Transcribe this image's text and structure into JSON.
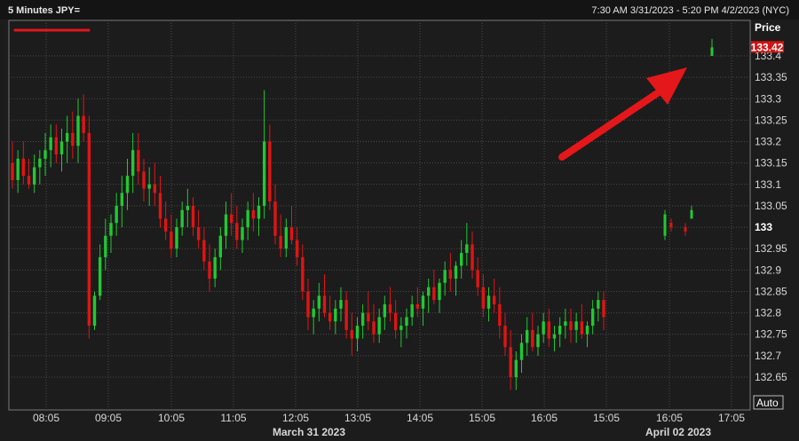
{
  "header": {
    "title": "5 Minutes JPY=",
    "range": "7:30 AM 3/31/2023 - 5:20 PM 4/2/2023 (NYC)"
  },
  "colors": {
    "background": "#1c1c1c",
    "grid": "#4a4a4a",
    "up": "#22c833",
    "down": "#e11414",
    "annotation": "#e4171b",
    "last_price_bg": "#d11414"
  },
  "chart_data": {
    "type": "candlestick",
    "title": "5 Minutes JPY=",
    "y_axis_title": "Price",
    "y_axis_mode": "Auto",
    "ylim": [
      132.605,
      133.5
    ],
    "y_ticks": [
      133.4,
      133.35,
      133.3,
      133.25,
      133.2,
      133.15,
      133.1,
      133.05,
      133,
      132.95,
      132.9,
      132.85,
      132.8,
      132.75,
      132.7,
      132.65
    ],
    "y_tick_labels": [
      "133.4",
      "133.35",
      "133.3",
      "133.25",
      "133.2",
      "133.15",
      "133.1",
      "133.05",
      "133",
      "132.95",
      "132.9",
      "132.85",
      "132.8",
      "132.75",
      "132.7",
      "132.65"
    ],
    "y_bold_tick": "133",
    "last_price": 133.42,
    "last_price_label": "133.42",
    "x_tick_labels": [
      "08:05",
      "09:05",
      "10:05",
      "11:05",
      "12:05",
      "13:05",
      "14:05",
      "15:05",
      "16:05",
      "15:05",
      "16:05",
      "17:05"
    ],
    "date_labels": [
      "March 31 2023",
      "April 02 2023"
    ],
    "grid": true,
    "annotations": [
      "red underline below title",
      "red arrow pointing up to last price"
    ],
    "candles_day1": [
      [
        133.15,
        133.2,
        133.09,
        133.11
      ],
      [
        133.11,
        133.18,
        133.08,
        133.16
      ],
      [
        133.16,
        133.2,
        133.1,
        133.12
      ],
      [
        133.12,
        133.16,
        133.09,
        133.1
      ],
      [
        133.1,
        133.17,
        133.08,
        133.14
      ],
      [
        133.14,
        133.18,
        133.1,
        133.16
      ],
      [
        133.16,
        133.22,
        133.12,
        133.18
      ],
      [
        133.18,
        133.24,
        133.14,
        133.21
      ],
      [
        133.21,
        133.24,
        133.15,
        133.17
      ],
      [
        133.17,
        133.23,
        133.13,
        133.2
      ],
      [
        133.2,
        133.26,
        133.15,
        133.22
      ],
      [
        133.22,
        133.27,
        133.16,
        133.19
      ],
      [
        133.19,
        133.3,
        133.15,
        133.26
      ],
      [
        133.26,
        133.31,
        133.2,
        133.22
      ],
      [
        133.22,
        133.26,
        132.74,
        132.77
      ],
      [
        132.77,
        132.85,
        132.76,
        132.84
      ],
      [
        132.84,
        132.96,
        132.83,
        132.93
      ],
      [
        132.93,
        133.02,
        132.9,
        132.98
      ],
      [
        132.98,
        133.03,
        132.94,
        133.01
      ],
      [
        133.01,
        133.08,
        132.98,
        133.05
      ],
      [
        133.05,
        133.12,
        133,
        133.08
      ],
      [
        133.08,
        133.16,
        133.04,
        133.12
      ],
      [
        133.12,
        133.22,
        133.08,
        133.18
      ],
      [
        133.18,
        133.22,
        133.1,
        133.13
      ],
      [
        133.13,
        133.16,
        133.06,
        133.09
      ],
      [
        133.09,
        133.14,
        133.05,
        133.1
      ],
      [
        133.1,
        133.15,
        133.05,
        133.08
      ],
      [
        133.08,
        133.12,
        133,
        133.02
      ],
      [
        133.02,
        133.06,
        132.97,
        132.99
      ],
      [
        132.99,
        133.03,
        132.93,
        132.95
      ],
      [
        132.95,
        133.02,
        132.93,
        133
      ],
      [
        133,
        133.06,
        132.98,
        133.04
      ],
      [
        133.04,
        133.09,
        133,
        133.05
      ],
      [
        133.05,
        133.07,
        132.98,
        133
      ],
      [
        133,
        133.04,
        132.95,
        132.97
      ],
      [
        132.97,
        133,
        132.9,
        132.92
      ],
      [
        132.92,
        132.96,
        132.85,
        132.88
      ],
      [
        132.88,
        132.95,
        132.86,
        132.93
      ],
      [
        132.93,
        133,
        132.9,
        132.98
      ],
      [
        132.98,
        133.06,
        132.95,
        133.03
      ],
      [
        133.03,
        133.08,
        132.98,
        133.01
      ],
      [
        133.01,
        133.05,
        132.95,
        132.97
      ],
      [
        132.97,
        133.02,
        132.94,
        133
      ],
      [
        133,
        133.06,
        132.97,
        133.04
      ],
      [
        133.04,
        133.08,
        132.99,
        133.02
      ],
      [
        133.02,
        133.07,
        132.98,
        133.05
      ],
      [
        133.05,
        133.32,
        133.02,
        133.2
      ],
      [
        133.2,
        133.24,
        133.04,
        133.06
      ],
      [
        133.06,
        133.1,
        132.96,
        132.98
      ],
      [
        132.98,
        133.03,
        132.93,
        132.95
      ],
      [
        132.95,
        133.02,
        132.93,
        133
      ],
      [
        133,
        133.05,
        132.96,
        132.97
      ],
      [
        132.97,
        133,
        132.91,
        132.93
      ],
      [
        132.93,
        132.96,
        132.83,
        132.85
      ],
      [
        132.85,
        132.88,
        132.76,
        132.79
      ],
      [
        132.79,
        132.83,
        132.75,
        132.81
      ],
      [
        132.81,
        132.87,
        132.78,
        132.84
      ],
      [
        132.84,
        132.89,
        132.79,
        132.8
      ],
      [
        132.8,
        132.84,
        132.76,
        132.78
      ],
      [
        132.78,
        132.83,
        132.75,
        132.81
      ],
      [
        132.81,
        132.86,
        132.78,
        132.83
      ],
      [
        132.83,
        132.85,
        132.74,
        132.76
      ],
      [
        132.76,
        132.8,
        132.7,
        132.74
      ],
      [
        132.74,
        132.79,
        132.71,
        132.77
      ],
      [
        132.77,
        132.82,
        132.74,
        132.8
      ],
      [
        132.8,
        132.85,
        132.76,
        132.78
      ],
      [
        132.78,
        132.82,
        132.73,
        132.75
      ],
      [
        132.75,
        132.81,
        132.73,
        132.79
      ],
      [
        132.79,
        132.84,
        132.76,
        132.82
      ],
      [
        132.82,
        132.86,
        132.78,
        132.8
      ],
      [
        132.8,
        132.83,
        132.74,
        132.76
      ],
      [
        132.76,
        132.79,
        132.72,
        132.77
      ],
      [
        132.77,
        132.81,
        132.74,
        132.79
      ],
      [
        132.79,
        132.84,
        132.77,
        132.82
      ],
      [
        132.82,
        132.86,
        132.79,
        132.81
      ],
      [
        132.81,
        132.85,
        132.77,
        132.84
      ],
      [
        132.84,
        132.88,
        132.8,
        132.86
      ],
      [
        132.86,
        132.9,
        132.82,
        132.83
      ],
      [
        132.83,
        132.88,
        132.8,
        132.87
      ],
      [
        132.87,
        132.92,
        132.84,
        132.9
      ],
      [
        132.9,
        132.94,
        132.85,
        132.88
      ],
      [
        132.88,
        132.92,
        132.84,
        132.91
      ],
      [
        132.91,
        132.97,
        132.88,
        132.94
      ],
      [
        132.94,
        133.01,
        132.91,
        132.96
      ],
      [
        132.96,
        132.99,
        132.88,
        132.9
      ],
      [
        132.9,
        132.93,
        132.84,
        132.86
      ],
      [
        132.86,
        132.89,
        132.79,
        132.81
      ],
      [
        132.81,
        132.86,
        132.78,
        132.84
      ],
      [
        132.84,
        132.88,
        132.8,
        132.82
      ],
      [
        132.82,
        132.86,
        132.74,
        132.77
      ],
      [
        132.77,
        132.8,
        132.7,
        132.72
      ],
      [
        132.72,
        132.76,
        132.62,
        132.65
      ],
      [
        132.65,
        132.71,
        132.62,
        132.69
      ],
      [
        132.69,
        132.75,
        132.66,
        132.73
      ],
      [
        132.73,
        132.79,
        132.7,
        132.76
      ],
      [
        132.76,
        132.8,
        132.71,
        132.72
      ],
      [
        132.72,
        132.77,
        132.7,
        132.75
      ],
      [
        132.75,
        132.8,
        132.73,
        132.78
      ],
      [
        132.78,
        132.81,
        132.72,
        132.74
      ],
      [
        132.74,
        132.77,
        132.71,
        132.75
      ],
      [
        132.75,
        132.79,
        132.72,
        132.77
      ],
      [
        132.77,
        132.81,
        132.74,
        132.78
      ],
      [
        132.78,
        132.81,
        132.73,
        132.76
      ],
      [
        132.76,
        132.8,
        132.73,
        132.78
      ],
      [
        132.78,
        132.82,
        132.74,
        132.75
      ],
      [
        132.75,
        132.78,
        132.72,
        132.77
      ],
      [
        132.77,
        132.83,
        132.75,
        132.81
      ],
      [
        132.81,
        132.85,
        132.78,
        132.83
      ],
      [
        132.83,
        132.85,
        132.76,
        132.79
      ]
    ],
    "candles_day2": [
      [
        132.98,
        133.04,
        132.97,
        133.03
      ],
      [
        133.01,
        133.02,
        132.99,
        133
      ],
      [
        133.0,
        133.01,
        132.98,
        132.99
      ],
      [
        133.02,
        133.05,
        133.02,
        133.04
      ],
      [
        133.4,
        133.44,
        133.4,
        133.42
      ]
    ]
  }
}
